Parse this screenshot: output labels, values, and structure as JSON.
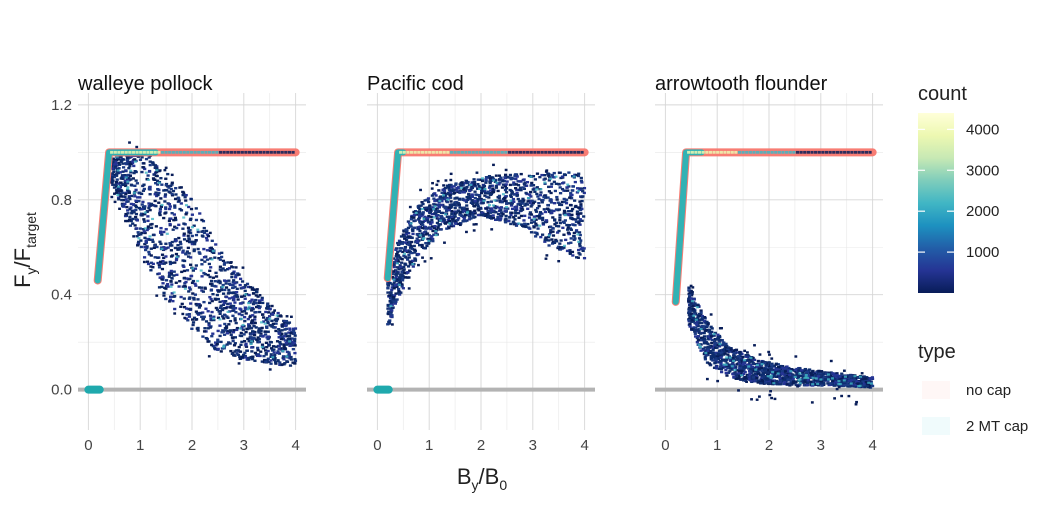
{
  "chart_data": {
    "type": "heatmap",
    "description_free": true,
    "xlim": [
      -0.2,
      4.2
    ],
    "ylim": [
      -0.17,
      1.25
    ],
    "x_ticks": [
      0,
      1,
      2,
      3,
      4
    ],
    "x_tick_labels": [
      "0",
      "1",
      "2",
      "3",
      "4"
    ],
    "y_ticks": [
      0.0,
      0.4,
      0.8,
      1.2
    ],
    "y_tick_labels": [
      "0.0",
      "0.4",
      "0.8",
      "1.2"
    ],
    "xlabel": {
      "main": "B",
      "sub1": "y",
      "slash": "/",
      "main2": "B",
      "sub2": "0"
    },
    "ylabel": {
      "main": "F",
      "sub1": "y",
      "slash": "/",
      "main2": "F",
      "sub2": "target"
    },
    "grid": true,
    "legend_position": "right",
    "legend": {
      "count_title": "count",
      "count_ticks": [
        1000,
        2000,
        3000,
        4000
      ],
      "count_tick_labels": [
        "1000",
        "2000",
        "3000",
        "4000"
      ],
      "count_max": 4400,
      "colors": [
        "#081d58",
        "#253494",
        "#225ea8",
        "#1d91c0",
        "#41b6c4",
        "#7fcdbb",
        "#c7e9b4",
        "#edf8b1",
        "#ffffd9"
      ],
      "type_title": "type",
      "type_entries": [
        {
          "label": "no cap",
          "color": "#f8766d"
        },
        {
          "label": "2 MT cap",
          "color": "#00bfc4"
        }
      ]
    },
    "panels": [
      {
        "title": "walleye pollock",
        "no_cap_line": [
          [
            0.18,
            0.46
          ],
          [
            0.4,
            1.0
          ],
          [
            4.0,
            1.0
          ]
        ],
        "cap_line": [
          [
            0.18,
            0.46
          ],
          [
            0.4,
            1.0
          ],
          [
            1.3,
            1.0
          ]
        ],
        "cap_zero_segment": [
          0.0,
          0.22
        ],
        "scatter_cloud": [
          {
            "x": 0.45,
            "ylow": 0.88,
            "yhigh": 1.0
          },
          {
            "x": 1.0,
            "ylow": 0.6,
            "yhigh": 0.99
          },
          {
            "x": 1.5,
            "ylow": 0.4,
            "yhigh": 0.9
          },
          {
            "x": 2.0,
            "ylow": 0.28,
            "yhigh": 0.78
          },
          {
            "x": 2.5,
            "ylow": 0.18,
            "yhigh": 0.58
          },
          {
            "x": 3.0,
            "ylow": 0.14,
            "yhigh": 0.45
          },
          {
            "x": 3.5,
            "ylow": 0.12,
            "yhigh": 0.35
          },
          {
            "x": 4.0,
            "ylow": 0.1,
            "yhigh": 0.26
          }
        ]
      },
      {
        "title": "Pacific cod",
        "no_cap_line": [
          [
            0.2,
            0.47
          ],
          [
            0.4,
            1.0
          ],
          [
            4.0,
            1.0
          ]
        ],
        "cap_line": [
          [
            0.2,
            0.47
          ],
          [
            0.4,
            1.0
          ],
          [
            0.5,
            1.0
          ]
        ],
        "cap_zero_segment": [
          0.0,
          0.22
        ],
        "scatter_cloud": [
          {
            "x": 0.2,
            "ylow": 0.27,
            "yhigh": 0.45
          },
          {
            "x": 0.4,
            "ylow": 0.38,
            "yhigh": 0.62
          },
          {
            "x": 0.8,
            "ylow": 0.58,
            "yhigh": 0.78
          },
          {
            "x": 1.3,
            "ylow": 0.68,
            "yhigh": 0.85
          },
          {
            "x": 2.0,
            "ylow": 0.74,
            "yhigh": 0.89
          },
          {
            "x": 2.7,
            "ylow": 0.7,
            "yhigh": 0.9
          },
          {
            "x": 3.3,
            "ylow": 0.62,
            "yhigh": 0.9
          },
          {
            "x": 4.0,
            "ylow": 0.56,
            "yhigh": 0.9
          }
        ]
      },
      {
        "title": "arrowtooth flounder",
        "no_cap_line": [
          [
            0.2,
            0.37
          ],
          [
            0.4,
            1.0
          ],
          [
            4.0,
            1.0
          ]
        ],
        "cap_line": [
          [
            0.2,
            0.37
          ],
          [
            0.4,
            1.0
          ],
          [
            0.7,
            1.0
          ]
        ],
        "cap_zero_segment": null,
        "scatter_cloud": [
          {
            "x": 0.45,
            "ylow": 0.28,
            "yhigh": 0.43
          },
          {
            "x": 0.8,
            "ylow": 0.12,
            "yhigh": 0.28
          },
          {
            "x": 1.2,
            "ylow": 0.06,
            "yhigh": 0.18
          },
          {
            "x": 1.8,
            "ylow": 0.03,
            "yhigh": 0.12
          },
          {
            "x": 2.5,
            "ylow": 0.02,
            "yhigh": 0.09
          },
          {
            "x": 3.2,
            "ylow": 0.02,
            "yhigh": 0.07
          },
          {
            "x": 4.0,
            "ylow": 0.01,
            "yhigh": 0.05
          }
        ]
      }
    ]
  }
}
